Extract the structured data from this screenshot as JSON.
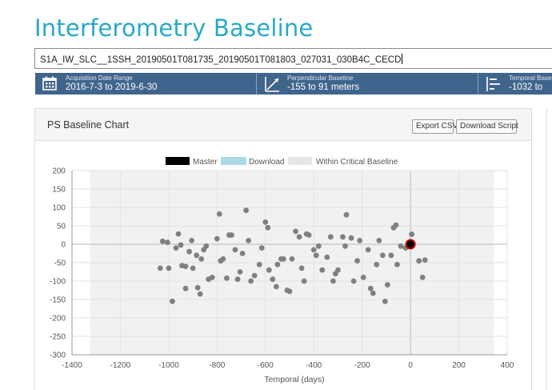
{
  "page": {
    "title": "Interferometry Baseline"
  },
  "scene": {
    "value": "S1A_IW_SLC__1SSH_20190501T081735_20190501T081803_027031_030B4C_CECD"
  },
  "stats": {
    "acquisition": {
      "label": "Acquisition Date Range",
      "value": "2016-7-3  to  2019-6-30",
      "icon": "calendar-icon"
    },
    "perpendicular": {
      "label": "Perpendicular Baseline",
      "value": "-155  to  91 meters",
      "icon": "perpendicular-baseline-icon"
    },
    "temporal": {
      "label": "Temporal Baseli",
      "value": "-1032  to",
      "icon": "temporal-baseline-icon"
    }
  },
  "panel": {
    "title": "PS Baseline Chart",
    "export_label": "Export CSV",
    "download_label": "Download Script"
  },
  "colors": {
    "title": "#27a9c6",
    "bar": "#40658c",
    "master": "#000000",
    "download": "#add8e6",
    "critical": "#e6e6e6",
    "point": "#808080"
  },
  "chart_data": {
    "type": "scatter",
    "xlabel": "Temporal (days)",
    "ylabel": "",
    "xlim": [
      -1400,
      400
    ],
    "ylim": [
      -300,
      200
    ],
    "xticks": [
      "-1400",
      "-1200",
      "-1000",
      "-800",
      "-600",
      "-400",
      "-200",
      "0",
      "200",
      "400"
    ],
    "yticks": [
      "200",
      "150",
      "100",
      "50",
      "0",
      "-50",
      "-100",
      "-150",
      "-200",
      "-250",
      "-300"
    ],
    "grid": true,
    "legend": {
      "placement": "top-center",
      "items": [
        "Master",
        "Download",
        "Within Critical Baseline"
      ]
    },
    "critical_region": {
      "x": [
        -1325,
        345
      ],
      "y": [
        -300,
        200
      ]
    },
    "master": {
      "x": 0,
      "y": 0
    },
    "points": [
      [
        -1035,
        -65
      ],
      [
        -1025,
        8
      ],
      [
        -1005,
        5
      ],
      [
        -1000,
        -65
      ],
      [
        -985,
        -155
      ],
      [
        -970,
        -10
      ],
      [
        -960,
        28
      ],
      [
        -950,
        -2
      ],
      [
        -945,
        -58
      ],
      [
        -930,
        -120
      ],
      [
        -930,
        -60
      ],
      [
        -915,
        -20
      ],
      [
        -905,
        10
      ],
      [
        -900,
        -65
      ],
      [
        -885,
        -30
      ],
      [
        -880,
        -118
      ],
      [
        -870,
        -135
      ],
      [
        -865,
        -40
      ],
      [
        -855,
        -15
      ],
      [
        -845,
        -5
      ],
      [
        -835,
        -95
      ],
      [
        -820,
        -90
      ],
      [
        -800,
        15
      ],
      [
        -790,
        82
      ],
      [
        -785,
        -45
      ],
      [
        -775,
        -40
      ],
      [
        -760,
        -92
      ],
      [
        -750,
        25
      ],
      [
        -740,
        25
      ],
      [
        -725,
        -15
      ],
      [
        -715,
        -95
      ],
      [
        -705,
        -75
      ],
      [
        -695,
        -25
      ],
      [
        -680,
        92
      ],
      [
        -670,
        10
      ],
      [
        -660,
        -100
      ],
      [
        -645,
        -85
      ],
      [
        -625,
        -55
      ],
      [
        -615,
        -10
      ],
      [
        -600,
        60
      ],
      [
        -590,
        45
      ],
      [
        -585,
        -70
      ],
      [
        -570,
        -95
      ],
      [
        -555,
        -115
      ],
      [
        -550,
        -55
      ],
      [
        -535,
        -40
      ],
      [
        -525,
        -40
      ],
      [
        -510,
        -125
      ],
      [
        -500,
        -128
      ],
      [
        -490,
        -40
      ],
      [
        -475,
        35
      ],
      [
        -460,
        20
      ],
      [
        -450,
        -65
      ],
      [
        -440,
        -100
      ],
      [
        -430,
        28
      ],
      [
        -420,
        25
      ],
      [
        -400,
        -15
      ],
      [
        -390,
        -30
      ],
      [
        -380,
        -5
      ],
      [
        -365,
        -70
      ],
      [
        -345,
        -35
      ],
      [
        -330,
        20
      ],
      [
        -320,
        -100
      ],
      [
        -310,
        -80
      ],
      [
        -300,
        -70
      ],
      [
        -280,
        20
      ],
      [
        -270,
        -5
      ],
      [
        -265,
        80
      ],
      [
        -245,
        17
      ],
      [
        -235,
        -100
      ],
      [
        -220,
        -45
      ],
      [
        -210,
        10
      ],
      [
        -195,
        -90
      ],
      [
        -175,
        -15
      ],
      [
        -165,
        -120
      ],
      [
        -155,
        -133
      ],
      [
        -140,
        -55
      ],
      [
        -130,
        10
      ],
      [
        -115,
        -30
      ],
      [
        -105,
        -155
      ],
      [
        -95,
        -110
      ],
      [
        -80,
        -30
      ],
      [
        -70,
        45
      ],
      [
        -60,
        52
      ],
      [
        -55,
        -55
      ],
      [
        -40,
        -5
      ],
      [
        -20,
        -10
      ],
      [
        5,
        27
      ],
      [
        35,
        -45
      ],
      [
        50,
        -90
      ],
      [
        60,
        -43
      ]
    ]
  }
}
